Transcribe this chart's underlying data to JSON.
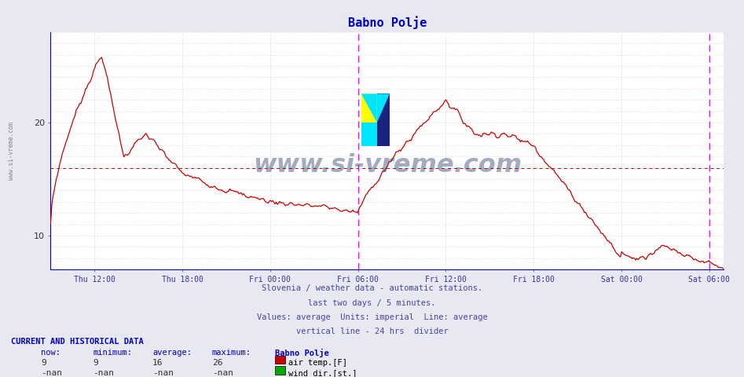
{
  "title": "Babno Polje",
  "title_color": "#0000cc",
  "bg_color": "#e8e8f0",
  "plot_bg_color": "#ffffff",
  "line_color": "#cc0000",
  "avg_line_color": "#cc0000",
  "avg_line_value": 16,
  "vertical_line_color": "#ff00ff",
  "ylabel_left": "www.si-vreme.com",
  "yticks": [
    10,
    20
  ],
  "ymin": 7,
  "ymax": 28,
  "xtick_labels": [
    "Thu 12:00",
    "Thu 18:00",
    "Fri 00:00",
    "Fri 06:00",
    "Fri 12:00",
    "Fri 18:00",
    "Sat 00:00",
    "Sat 06:00"
  ],
  "xtick_hours": [
    3,
    9,
    15,
    21,
    27,
    33,
    39,
    45
  ],
  "xmin": 0,
  "xmax": 46,
  "vline1": 21,
  "vline2": 45,
  "info_text_lines": [
    "Slovenia / weather data - automatic stations.",
    "last two days / 5 minutes.",
    "Values: average  Units: imperial  Line: average",
    "vertical line - 24 hrs  divider"
  ],
  "info_color": "#4444aa",
  "legend_label1": "air temp.[F]",
  "legend_label2": "wind dir.[st.]",
  "legend_color1": "#cc0000",
  "legend_color2": "#00aa00",
  "table_header": "CURRENT AND HISTORICAL DATA",
  "table_col_labels": [
    "now:",
    "minimum:",
    "average:",
    "maximum:",
    "Babno Polje"
  ],
  "table_row1": [
    "9",
    "9",
    "16",
    "26"
  ],
  "table_row2": [
    "-nan",
    "-nan",
    "-nan",
    "-nan"
  ],
  "watermark": "www.si-vreme.com",
  "watermark_color": "#1a3060"
}
